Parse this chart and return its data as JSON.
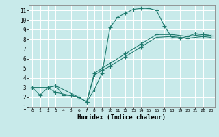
{
  "title": "",
  "xlabel": "Humidex (Indice chaleur)",
  "bg_color": "#c8eaea",
  "grid_color": "#ffffff",
  "line_color": "#1f7a6e",
  "xlim": [
    -0.5,
    23.5
  ],
  "ylim": [
    1,
    11.5
  ],
  "xticks": [
    0,
    1,
    2,
    3,
    4,
    5,
    6,
    7,
    8,
    9,
    10,
    11,
    12,
    13,
    14,
    15,
    16,
    17,
    18,
    19,
    20,
    21,
    22,
    23
  ],
  "yticks": [
    1,
    2,
    3,
    4,
    5,
    6,
    7,
    8,
    9,
    10,
    11
  ],
  "curve1_x": [
    0,
    1,
    2,
    3,
    4,
    5,
    6,
    7,
    8,
    9,
    10,
    11,
    12,
    13,
    14,
    15,
    16,
    17,
    18,
    19,
    20,
    21,
    22,
    23
  ],
  "curve1_y": [
    3.0,
    2.2,
    3.0,
    3.2,
    2.2,
    2.2,
    2.0,
    1.5,
    2.8,
    4.5,
    9.2,
    10.3,
    10.7,
    11.1,
    11.2,
    11.2,
    11.0,
    9.4,
    8.2,
    8.1,
    8.3,
    8.6,
    8.5,
    8.4
  ],
  "curve2_x": [
    0,
    2,
    3,
    6,
    7,
    8,
    9,
    10,
    12,
    14,
    16,
    18,
    20,
    22,
    23
  ],
  "curve2_y": [
    3.0,
    3.0,
    3.2,
    2.0,
    1.5,
    4.5,
    5.0,
    5.5,
    6.5,
    7.5,
    8.5,
    8.5,
    8.3,
    8.5,
    8.4
  ],
  "curve3_x": [
    0,
    2,
    3,
    6,
    7,
    8,
    9,
    10,
    12,
    14,
    16,
    18,
    20,
    22,
    23
  ],
  "curve3_y": [
    3.0,
    3.0,
    2.5,
    2.0,
    1.5,
    4.3,
    4.8,
    5.2,
    6.2,
    7.2,
    8.2,
    8.3,
    8.1,
    8.3,
    8.2
  ]
}
